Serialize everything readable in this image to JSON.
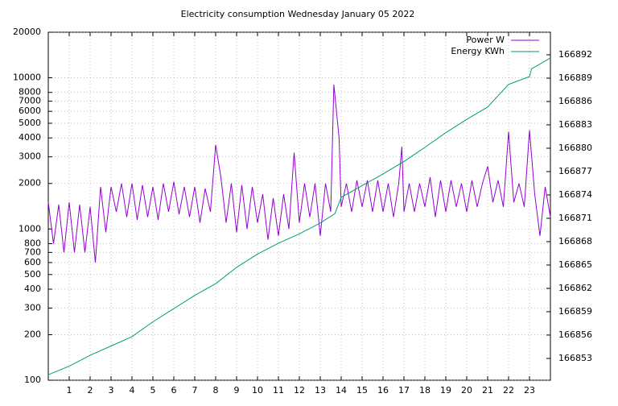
{
  "chart_data": {
    "type": "line",
    "title": "Electricity consumption Wednesday January 05 2022",
    "xlim": [
      0,
      24
    ],
    "xticks": [
      1,
      2,
      3,
      4,
      5,
      6,
      7,
      8,
      9,
      10,
      11,
      12,
      13,
      14,
      15,
      16,
      17,
      18,
      19,
      20,
      21,
      22,
      23
    ],
    "ylim": [
      100,
      20000
    ],
    "log_y": true,
    "yticks": [
      100,
      200,
      300,
      400,
      500,
      600,
      700,
      800,
      1000,
      2000,
      3000,
      4000,
      5000,
      6000,
      7000,
      8000,
      10000,
      20000
    ],
    "y2lim": [
      166850.2,
      166894.9
    ],
    "y2ticks": [
      166853,
      166856,
      166859,
      166862,
      166865,
      166868,
      166871,
      166874,
      166877,
      166880,
      166883,
      166886,
      166889,
      166892
    ],
    "grid": true,
    "legend": "top-right",
    "series": [
      {
        "name": "Power W",
        "color": "#9400d3",
        "x": [
          0,
          0.25,
          0.5,
          0.75,
          1,
          1.25,
          1.5,
          1.75,
          2,
          2.25,
          2.5,
          2.75,
          3,
          3.25,
          3.5,
          3.75,
          4,
          4.25,
          4.5,
          4.75,
          5,
          5.25,
          5.5,
          5.75,
          6,
          6.25,
          6.5,
          6.75,
          7,
          7.25,
          7.5,
          7.75,
          8,
          8.25,
          8.5,
          8.75,
          9,
          9.25,
          9.5,
          9.75,
          10,
          10.25,
          10.5,
          10.75,
          11,
          11.25,
          11.5,
          11.75,
          12,
          12.25,
          12.5,
          12.75,
          13,
          13.25,
          13.5,
          13.65,
          13.75,
          13.9,
          14,
          14.25,
          14.5,
          14.75,
          15,
          15.25,
          15.5,
          15.75,
          16,
          16.25,
          16.5,
          16.75,
          16.9,
          17,
          17.25,
          17.5,
          17.75,
          18,
          18.25,
          18.5,
          18.75,
          19,
          19.25,
          19.5,
          19.75,
          20,
          20.25,
          20.5,
          20.75,
          21,
          21.25,
          21.5,
          21.75,
          22,
          22.25,
          22.5,
          22.75,
          23,
          23.25,
          23.5,
          23.75,
          24
        ],
        "values": [
          1500,
          800,
          1450,
          700,
          1500,
          700,
          1450,
          700,
          1400,
          600,
          1900,
          950,
          1900,
          1300,
          2000,
          1200,
          2000,
          1150,
          1950,
          1200,
          1900,
          1150,
          2000,
          1300,
          2050,
          1250,
          1900,
          1200,
          1900,
          1100,
          1850,
          1300,
          3600,
          2200,
          1100,
          2000,
          950,
          1950,
          1000,
          1900,
          1100,
          1700,
          850,
          1600,
          900,
          1700,
          1000,
          3200,
          1100,
          2000,
          1200,
          2000,
          900,
          2000,
          1300,
          9000,
          6500,
          4000,
          1400,
          2000,
          1300,
          2100,
          1400,
          2100,
          1300,
          2100,
          1300,
          2000,
          1200,
          2000,
          3500,
          1300,
          2000,
          1300,
          2000,
          1400,
          2200,
          1200,
          2100,
          1300,
          2100,
          1400,
          2000,
          1300,
          2100,
          1400,
          2000,
          2600,
          1500,
          2100,
          1400,
          4400,
          1500,
          2000,
          1400,
          4500,
          1700,
          900,
          1900,
          1200
        ]
      },
      {
        "name": "Energy KWh",
        "color": "#009e73",
        "axis": "y2",
        "x": [
          0,
          1,
          2,
          3,
          4,
          5,
          6,
          7,
          8,
          9,
          10,
          11,
          12,
          13,
          13.7,
          14,
          15,
          16,
          17,
          18,
          19,
          20,
          21,
          22,
          23,
          23.1,
          24
        ],
        "values": [
          166850.9,
          166852.0,
          166853.4,
          166854.6,
          166855.8,
          166857.7,
          166859.4,
          166861.1,
          166862.6,
          166864.7,
          166866.4,
          166867.8,
          166869.0,
          166870.4,
          166871.6,
          166873.7,
          166875.2,
          166876.7,
          166878.3,
          166880.1,
          166882.0,
          166883.7,
          166885.3,
          166888.2,
          166889.2,
          166890.2,
          166891.6
        ]
      }
    ]
  }
}
